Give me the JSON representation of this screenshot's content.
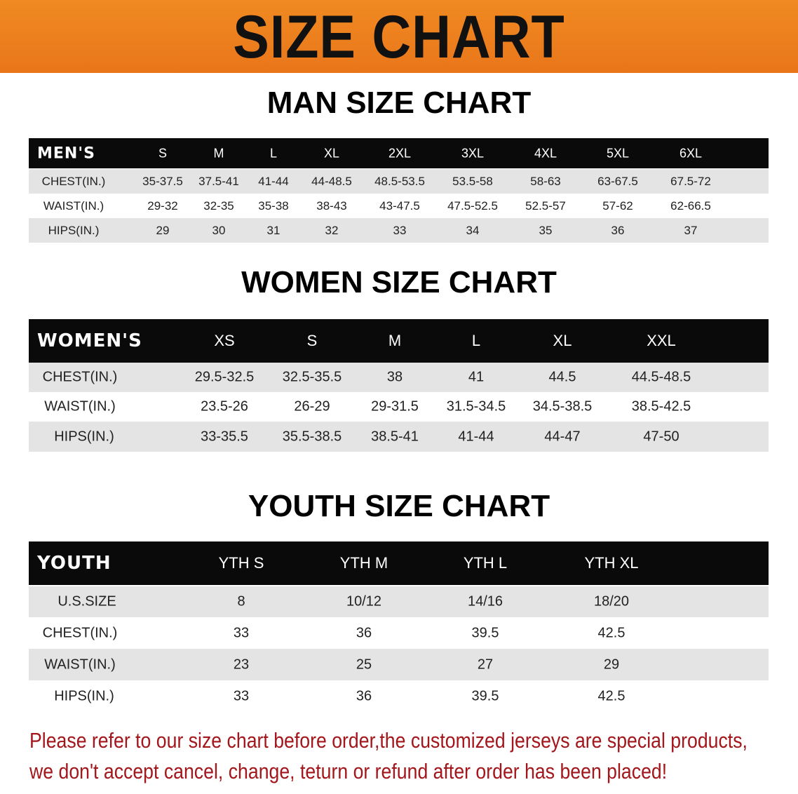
{
  "banner": {
    "title": "SIZE CHART",
    "color": "#ee8220"
  },
  "men": {
    "title": "MAN SIZE CHART",
    "header": [
      "MEN'S",
      "S",
      "M",
      "L",
      "XL",
      "2XL",
      "3XL",
      "4XL",
      "5XL",
      "6XL"
    ],
    "rows": [
      [
        "CHEST(IN.)",
        "35-37.5",
        "37.5-41",
        "41-44",
        "44-48.5",
        "48.5-53.5",
        "53.5-58",
        "58-63",
        "63-67.5",
        "67.5-72"
      ],
      [
        "WAIST(IN.)",
        "29-32",
        "32-35",
        "35-38",
        "38-43",
        "43-47.5",
        "47.5-52.5",
        "52.5-57",
        "57-62",
        "62-66.5"
      ],
      [
        "HIPS(IN.)",
        "29",
        "30",
        "31",
        "32",
        "33",
        "34",
        "35",
        "36",
        "37"
      ]
    ]
  },
  "women": {
    "title": "WOMEN SIZE CHART",
    "header": [
      "WOMEN'S",
      "XS",
      "S",
      "M",
      "L",
      "XL",
      "XXL"
    ],
    "rows": [
      [
        "CHEST(IN.)",
        "29.5-32.5",
        "32.5-35.5",
        "38",
        "41",
        "44.5",
        "44.5-48.5"
      ],
      [
        "WAIST(IN.)",
        "23.5-26",
        "26-29",
        "29-31.5",
        "31.5-34.5",
        "34.5-38.5",
        "38.5-42.5"
      ],
      [
        "HIPS(IN.)",
        "33-35.5",
        "35.5-38.5",
        "38.5-41",
        "41-44",
        "44-47",
        "47-50"
      ]
    ]
  },
  "youth": {
    "title": "YOUTH SIZE CHART",
    "header": [
      "YOUTH",
      "YTH S",
      "YTH M",
      "YTH L",
      "YTH XL"
    ],
    "rows": [
      [
        "U.S.SIZE",
        "8",
        "10/12",
        "14/16",
        "18/20"
      ],
      [
        "CHEST(IN.)",
        "33",
        "36",
        "39.5",
        "42.5"
      ],
      [
        "WAIST(IN.)",
        "23",
        "25",
        "27",
        "29"
      ],
      [
        "HIPS(IN.)",
        "33",
        "36",
        "39.5",
        "42.5"
      ]
    ]
  },
  "note": {
    "line1": "Please refer to our size chart before order,the customized jerseys are special products,",
    "line2": "we don't accept cancel, change, teturn or refund after order has been placed!",
    "color": "#a3171c"
  }
}
